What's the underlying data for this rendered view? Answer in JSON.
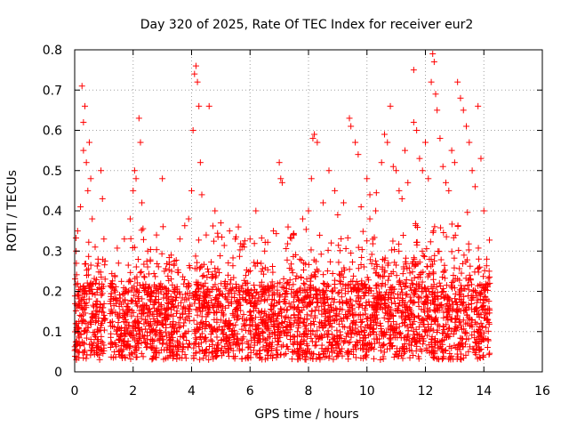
{
  "chart_data": {
    "type": "scatter",
    "title": "Day 320 of 2025, Rate Of TEC Index for receiver eur2",
    "xlabel": "GPS time / hours",
    "ylabel": "ROTI / TECUs",
    "xlim": [
      0,
      16
    ],
    "ylim": [
      0,
      0.8
    ],
    "xticks": [
      0,
      2,
      4,
      6,
      8,
      10,
      12,
      14,
      16
    ],
    "yticks": [
      0,
      0.1,
      0.2,
      0.3,
      0.4,
      0.5,
      0.6,
      0.7,
      0.8
    ],
    "xtick_labels": [
      "0",
      "2",
      "4",
      "6",
      "8",
      "10",
      "12",
      "14",
      "16"
    ],
    "ytick_labels": [
      "0",
      "0.1",
      "0.2",
      "0.3",
      "0.4",
      "0.5",
      "0.6",
      "0.7",
      "0.8"
    ],
    "grid": true,
    "marker": "+",
    "color": "#ff0000",
    "data_extent_x": [
      0,
      14.2
    ],
    "series": [
      {
        "points": [
          [
            0.05,
            0.3
          ],
          [
            0.1,
            0.35
          ],
          [
            0.2,
            0.41
          ],
          [
            0.25,
            0.71
          ],
          [
            0.3,
            0.62
          ],
          [
            0.3,
            0.55
          ],
          [
            0.35,
            0.66
          ],
          [
            0.4,
            0.52
          ],
          [
            0.45,
            0.45
          ],
          [
            0.5,
            0.57
          ],
          [
            0.55,
            0.48
          ],
          [
            0.6,
            0.38
          ],
          [
            0.7,
            0.31
          ],
          [
            0.8,
            0.28
          ],
          [
            0.9,
            0.5
          ],
          [
            0.95,
            0.43
          ],
          [
            1.0,
            0.33
          ],
          [
            1.5,
            0.27
          ],
          [
            1.7,
            0.33
          ],
          [
            1.9,
            0.38
          ],
          [
            2.0,
            0.45
          ],
          [
            2.05,
            0.5
          ],
          [
            2.1,
            0.48
          ],
          [
            2.2,
            0.63
          ],
          [
            2.25,
            0.57
          ],
          [
            2.3,
            0.42
          ],
          [
            2.5,
            0.3
          ],
          [
            2.8,
            0.34
          ],
          [
            3.0,
            0.48
          ],
          [
            3.3,
            0.29
          ],
          [
            3.6,
            0.33
          ],
          [
            3.9,
            0.38
          ],
          [
            4.0,
            0.45
          ],
          [
            4.05,
            0.6
          ],
          [
            4.1,
            0.74
          ],
          [
            4.15,
            0.76
          ],
          [
            4.2,
            0.72
          ],
          [
            4.25,
            0.66
          ],
          [
            4.3,
            0.52
          ],
          [
            4.35,
            0.44
          ],
          [
            4.5,
            0.34
          ],
          [
            4.6,
            0.66
          ],
          [
            4.8,
            0.4
          ],
          [
            5.0,
            0.37
          ],
          [
            5.3,
            0.35
          ],
          [
            5.6,
            0.36
          ],
          [
            5.8,
            0.31
          ],
          [
            6.0,
            0.33
          ],
          [
            6.2,
            0.4
          ],
          [
            6.5,
            0.3
          ],
          [
            6.8,
            0.35
          ],
          [
            7.0,
            0.52
          ],
          [
            7.05,
            0.48
          ],
          [
            7.1,
            0.47
          ],
          [
            7.3,
            0.36
          ],
          [
            7.5,
            0.34
          ],
          [
            7.8,
            0.38
          ],
          [
            8.0,
            0.4
          ],
          [
            8.1,
            0.48
          ],
          [
            8.15,
            0.58
          ],
          [
            8.2,
            0.59
          ],
          [
            8.3,
            0.57
          ],
          [
            8.5,
            0.42
          ],
          [
            8.7,
            0.5
          ],
          [
            8.9,
            0.45
          ],
          [
            9.0,
            0.39
          ],
          [
            9.2,
            0.42
          ],
          [
            9.4,
            0.63
          ],
          [
            9.45,
            0.61
          ],
          [
            9.6,
            0.57
          ],
          [
            9.7,
            0.54
          ],
          [
            9.8,
            0.41
          ],
          [
            10.0,
            0.48
          ],
          [
            10.1,
            0.44
          ],
          [
            10.3,
            0.4
          ],
          [
            10.5,
            0.52
          ],
          [
            10.6,
            0.59
          ],
          [
            10.7,
            0.57
          ],
          [
            10.8,
            0.66
          ],
          [
            10.9,
            0.51
          ],
          [
            11.0,
            0.5
          ],
          [
            11.1,
            0.45
          ],
          [
            11.2,
            0.43
          ],
          [
            11.3,
            0.55
          ],
          [
            11.4,
            0.47
          ],
          [
            11.6,
            0.62
          ],
          [
            11.7,
            0.6
          ],
          [
            11.8,
            0.53
          ],
          [
            11.9,
            0.5
          ],
          [
            12.0,
            0.57
          ],
          [
            12.1,
            0.48
          ],
          [
            12.2,
            0.72
          ],
          [
            12.25,
            0.79
          ],
          [
            12.3,
            0.77
          ],
          [
            12.35,
            0.69
          ],
          [
            12.4,
            0.65
          ],
          [
            12.5,
            0.58
          ],
          [
            12.6,
            0.51
          ],
          [
            12.7,
            0.47
          ],
          [
            12.8,
            0.45
          ],
          [
            12.9,
            0.55
          ],
          [
            13.0,
            0.52
          ],
          [
            13.1,
            0.72
          ],
          [
            13.2,
            0.68
          ],
          [
            13.3,
            0.65
          ],
          [
            13.4,
            0.61
          ],
          [
            13.5,
            0.57
          ],
          [
            13.6,
            0.5
          ],
          [
            13.7,
            0.46
          ],
          [
            13.8,
            0.66
          ],
          [
            13.9,
            0.53
          ],
          [
            14.0,
            0.4
          ],
          [
            14.1,
            0.28
          ],
          [
            14.2,
            0.22
          ],
          [
            11.6,
            0.75
          ]
        ]
      }
    ]
  }
}
